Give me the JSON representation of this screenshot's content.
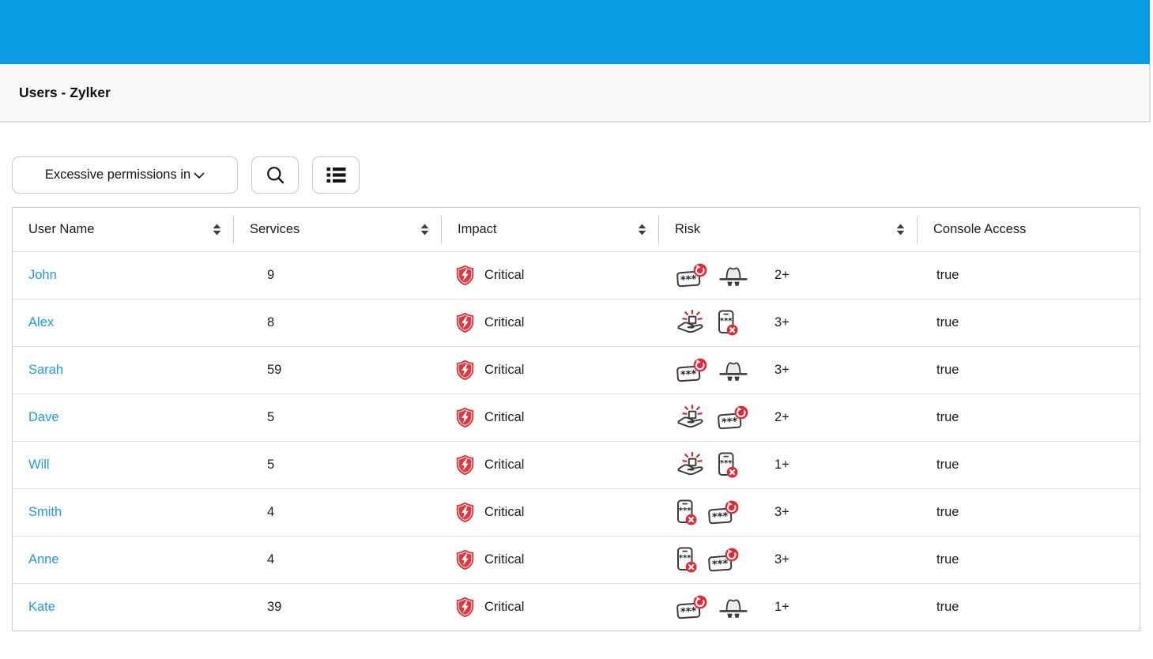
{
  "header": {
    "title": "Users - Zylker"
  },
  "toolbar": {
    "filter_dropdown": {
      "value": "Excessive permissions in",
      "chevron_icon": "chevron-down"
    },
    "search_button": {
      "icon": "search"
    },
    "list_button": {
      "icon": "list-view"
    }
  },
  "colors": {
    "topbar_blue": "#0a9be5",
    "link_blue": "#1e9bdf",
    "critical_red": "#dc3a41",
    "badge_red": "#e02b36",
    "icon_stroke": "#3c3c3c"
  },
  "table": {
    "columns": [
      {
        "label": "User Name",
        "sortable": true
      },
      {
        "label": "Services",
        "sortable": true
      },
      {
        "label": "Impact",
        "sortable": true
      },
      {
        "label": "Risk",
        "sortable": true
      },
      {
        "label": "Console Access",
        "sortable": false
      }
    ],
    "rows": [
      {
        "user": "John",
        "services": "9",
        "impact": "Critical",
        "impact_icon": "shield-bolt",
        "risk_icons": [
          "password-rotation",
          "incognito-user"
        ],
        "risk_count": "2+",
        "console_access": "true"
      },
      {
        "user": "Alex",
        "services": "8",
        "impact": "Critical",
        "impact_icon": "shield-bolt",
        "risk_icons": [
          "privileged-access",
          "mfa-disabled"
        ],
        "risk_count": "3+",
        "console_access": "true"
      },
      {
        "user": "Sarah",
        "services": "59",
        "impact": "Critical",
        "impact_icon": "shield-bolt",
        "risk_icons": [
          "password-rotation",
          "incognito-user"
        ],
        "risk_count": "3+",
        "console_access": "true"
      },
      {
        "user": "Dave",
        "services": "5",
        "impact": "Critical",
        "impact_icon": "shield-bolt",
        "risk_icons": [
          "privileged-access",
          "password-rotation"
        ],
        "risk_count": "2+",
        "console_access": "true"
      },
      {
        "user": "Will",
        "services": "5",
        "impact": "Critical",
        "impact_icon": "shield-bolt",
        "risk_icons": [
          "privileged-access",
          "mfa-disabled"
        ],
        "risk_count": "1+",
        "console_access": "true"
      },
      {
        "user": "Smith",
        "services": "4",
        "impact": "Critical",
        "impact_icon": "shield-bolt",
        "risk_icons": [
          "mfa-disabled",
          "password-rotation"
        ],
        "risk_count": "3+",
        "console_access": "true"
      },
      {
        "user": "Anne",
        "services": "4",
        "impact": "Critical",
        "impact_icon": "shield-bolt",
        "risk_icons": [
          "mfa-disabled",
          "password-rotation"
        ],
        "risk_count": "3+",
        "console_access": "true"
      },
      {
        "user": "Kate",
        "services": "39",
        "impact": "Critical",
        "impact_icon": "shield-bolt",
        "risk_icons": [
          "password-rotation",
          "incognito-user"
        ],
        "risk_count": "1+",
        "console_access": "true"
      }
    ]
  }
}
